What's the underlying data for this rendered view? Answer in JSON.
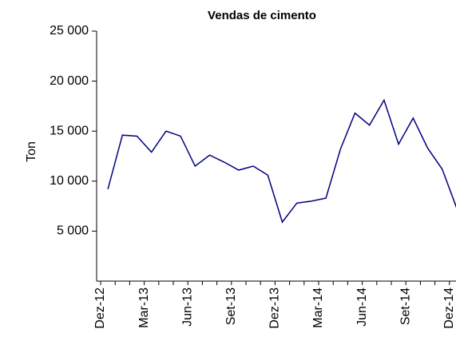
{
  "chart_data": {
    "type": "line",
    "title": "Vendas de cimento",
    "y_label": "Ton",
    "categories": [
      "Dez-12",
      null,
      null,
      "Mar-13",
      null,
      null,
      "Jun-13",
      null,
      null,
      "Set-13",
      null,
      null,
      "Dez-13",
      null,
      null,
      "Mar-14",
      null,
      null,
      "Jun-14",
      null,
      null,
      "Set-14",
      null,
      null,
      "Dez-14"
    ],
    "values": [
      9200,
      14600,
      14500,
      12900,
      15000,
      14500,
      11500,
      12600,
      11900,
      11100,
      11500,
      10600,
      5900,
      7800,
      8000,
      8300,
      13200,
      16800,
      15600,
      18100,
      13700,
      16300,
      13300,
      11200,
      7300
    ],
    "color": "#000080",
    "ylim": [
      0,
      25000
    ],
    "yticks": [
      {
        "value": 5000,
        "label": "5 000"
      },
      {
        "value": 10000,
        "label": "10 000"
      },
      {
        "value": 15000,
        "label": "15 000"
      },
      {
        "value": 20000,
        "label": "20 000"
      },
      {
        "value": 25000,
        "label": "25 000"
      }
    ],
    "grid": false
  }
}
